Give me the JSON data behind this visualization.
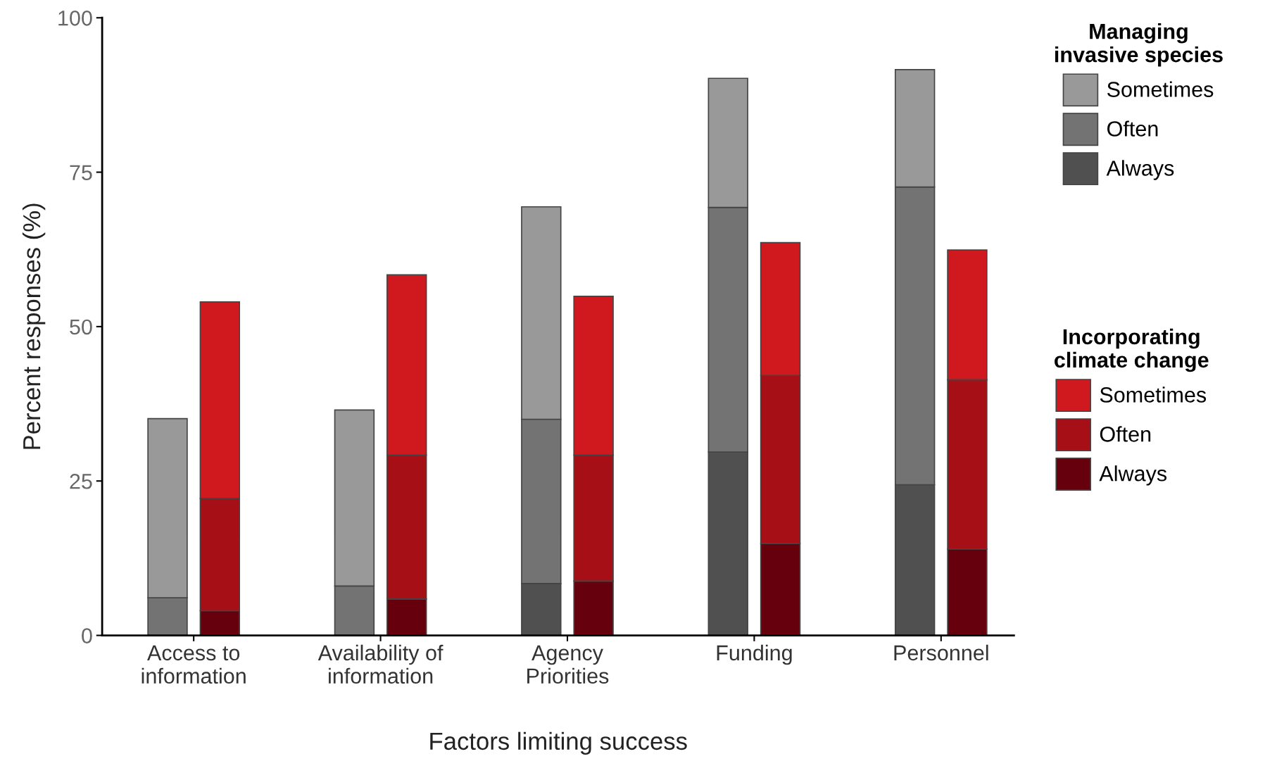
{
  "chart_data": {
    "type": "bar",
    "xlabel": "Factors limiting success",
    "ylabel": "Percent responses (%)",
    "categories": [
      "Access to\ninformation",
      "Availability of\ninformation",
      "Agency\nPriorities",
      "Funding",
      "Personnel"
    ],
    "legend_title": [
      "Managing invasive species",
      "Incorporating climate change"
    ],
    "series": [
      {
        "name": "Always",
        "color": "#505050",
        "base": [
          0,
          0,
          0,
          0,
          0
        ],
        "values": [
          0,
          0,
          8.4,
          29.7,
          24.4
        ]
      },
      {
        "name": "Often",
        "color": "#737373",
        "base": [
          0,
          0,
          8.4,
          29.7,
          24.4
        ],
        "values": [
          6.1,
          8.0,
          26.6,
          39.6,
          48.2
        ]
      },
      {
        "name": "Sometimes",
        "color": "#999999",
        "base": [
          6.1,
          8.0,
          35.0,
          69.3,
          72.6
        ],
        "values": [
          29.0,
          28.5,
          34.4,
          20.9,
          19.0
        ]
      },
      {
        "name": "Always",
        "color": "#67000d",
        "base": [
          0,
          0,
          0,
          0,
          0
        ],
        "values": [
          4.0,
          5.9,
          8.8,
          14.9,
          14.0
        ]
      },
      {
        "name": "Often",
        "color": "#a50f15",
        "base": [
          4.0,
          5.9,
          8.8,
          14.9,
          14.0
        ],
        "values": [
          18.2,
          23.3,
          20.4,
          27.2,
          27.4
        ]
      },
      {
        "name": "Sometimes",
        "color": "#d0191e",
        "base": [
          22.2,
          29.2,
          29.2,
          42.1,
          41.4
        ],
        "values": [
          31.8,
          29.2,
          25.7,
          21.5,
          21.0
        ]
      }
    ],
    "ylim": [
      0,
      100
    ],
    "yticks": [
      0,
      25,
      50,
      75,
      100
    ],
    "grid": false,
    "legend": "right"
  }
}
